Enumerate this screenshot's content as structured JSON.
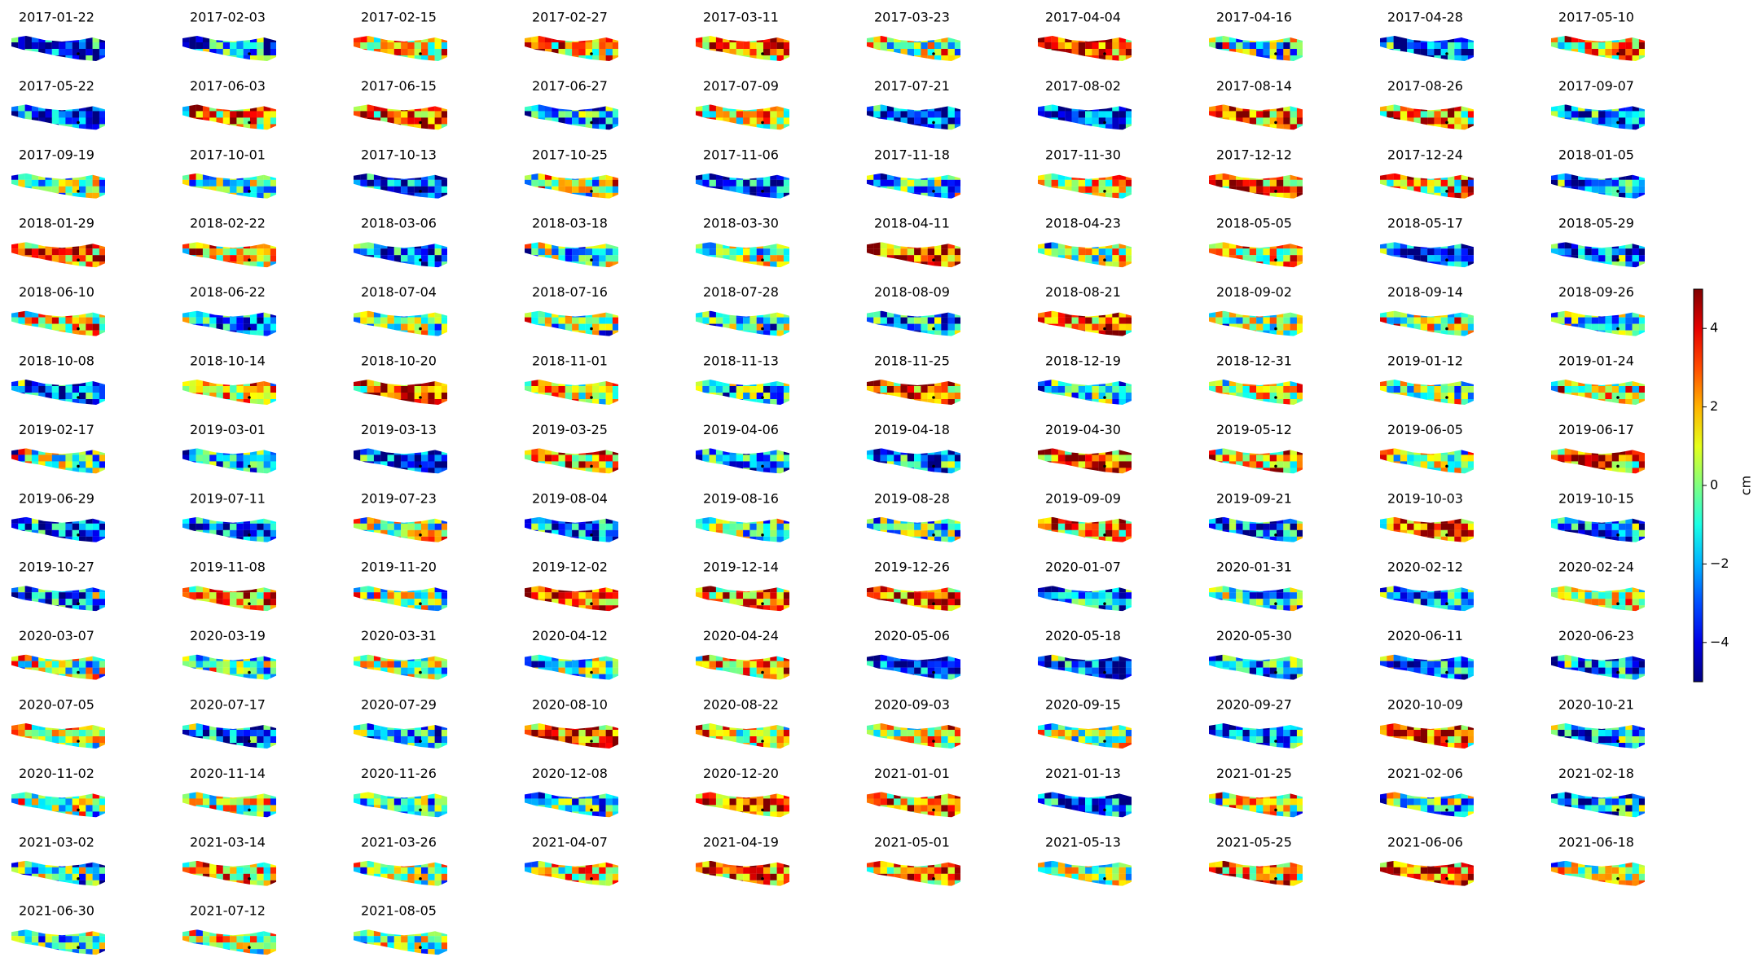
{
  "chart_data": {
    "type": "map",
    "panels": [
      "2017-01-22",
      "2017-02-03",
      "2017-02-15",
      "2017-02-27",
      "2017-03-11",
      "2017-03-23",
      "2017-04-04",
      "2017-04-16",
      "2017-04-28",
      "2017-05-10",
      "2017-05-22",
      "2017-06-03",
      "2017-06-15",
      "2017-06-27",
      "2017-07-09",
      "2017-07-21",
      "2017-08-02",
      "2017-08-14",
      "2017-08-26",
      "2017-09-07",
      "2017-09-19",
      "2017-10-01",
      "2017-10-13",
      "2017-10-25",
      "2017-11-06",
      "2017-11-18",
      "2017-11-30",
      "2017-12-12",
      "2017-12-24",
      "2018-01-05",
      "2018-01-29",
      "2018-02-22",
      "2018-03-06",
      "2018-03-18",
      "2018-03-30",
      "2018-04-11",
      "2018-04-23",
      "2018-05-05",
      "2018-05-17",
      "2018-05-29",
      "2018-06-10",
      "2018-06-22",
      "2018-07-04",
      "2018-07-16",
      "2018-07-28",
      "2018-08-09",
      "2018-08-21",
      "2018-09-02",
      "2018-09-14",
      "2018-09-26",
      "2018-10-08",
      "2018-10-14",
      "2018-10-20",
      "2018-11-01",
      "2018-11-13",
      "2018-11-25",
      "2018-12-19",
      "2018-12-31",
      "2019-01-12",
      "2019-01-24",
      "2019-02-17",
      "2019-03-01",
      "2019-03-13",
      "2019-03-25",
      "2019-04-06",
      "2019-04-18",
      "2019-04-30",
      "2019-05-12",
      "2019-06-05",
      "2019-06-17",
      "2019-06-29",
      "2019-07-11",
      "2019-07-23",
      "2019-08-04",
      "2019-08-16",
      "2019-08-28",
      "2019-09-09",
      "2019-09-21",
      "2019-10-03",
      "2019-10-15",
      "2019-10-27",
      "2019-11-08",
      "2019-11-20",
      "2019-12-02",
      "2019-12-14",
      "2019-12-26",
      "2020-01-07",
      "2020-01-31",
      "2020-02-12",
      "2020-02-24",
      "2020-03-07",
      "2020-03-19",
      "2020-03-31",
      "2020-04-12",
      "2020-04-24",
      "2020-05-06",
      "2020-05-18",
      "2020-05-30",
      "2020-06-11",
      "2020-06-23",
      "2020-07-05",
      "2020-07-17",
      "2020-07-29",
      "2020-08-10",
      "2020-08-22",
      "2020-09-03",
      "2020-09-15",
      "2020-09-27",
      "2020-10-09",
      "2020-10-21",
      "2020-11-02",
      "2020-11-14",
      "2020-11-26",
      "2020-12-08",
      "2020-12-20",
      "2021-01-01",
      "2021-01-13",
      "2021-01-25",
      "2021-02-06",
      "2021-02-18",
      "2021-03-02",
      "2021-03-14",
      "2021-03-26",
      "2021-04-07",
      "2021-04-19",
      "2021-05-01",
      "2021-05-13",
      "2021-05-25",
      "2021-06-06",
      "2021-06-18",
      "2021-06-30",
      "2021-07-12",
      "2021-08-05"
    ],
    "colorbar": {
      "label": "cm",
      "clim": [
        -5,
        5
      ],
      "colormap": "jet",
      "ticks": [
        {
          "value": -4,
          "label": "−4"
        },
        {
          "value": -2,
          "label": "−2"
        },
        0,
        2,
        4
      ]
    }
  }
}
